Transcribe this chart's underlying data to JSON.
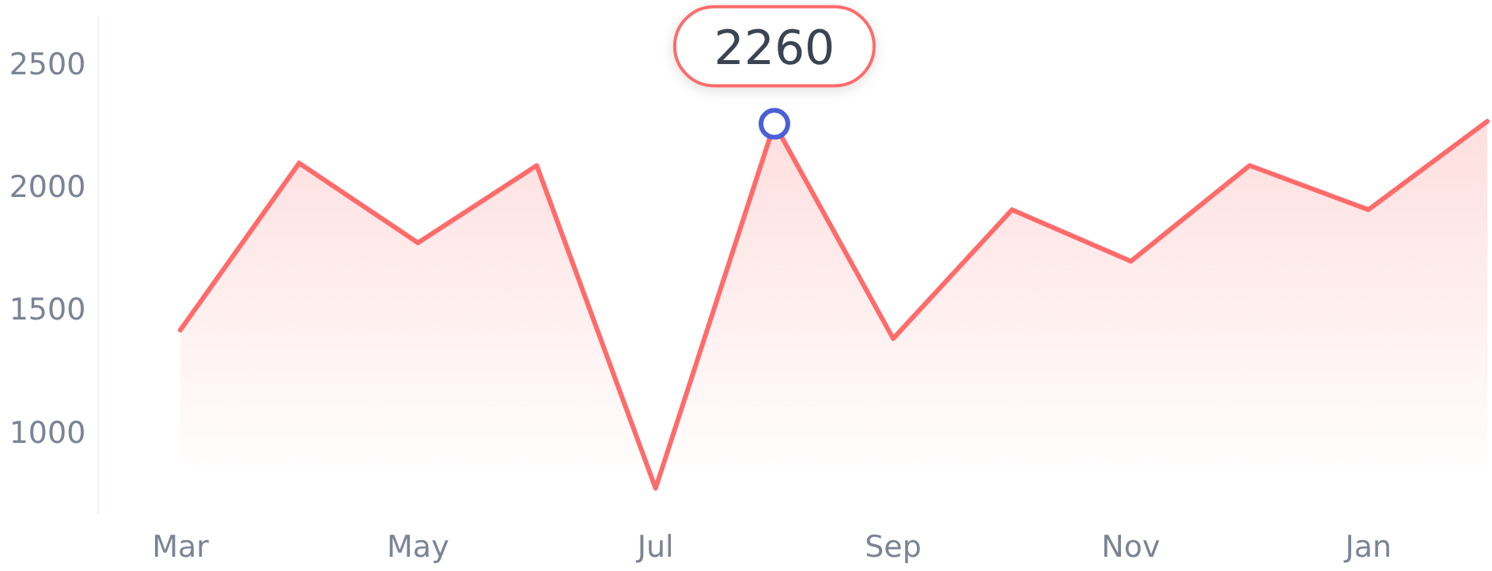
{
  "chart_data": {
    "type": "area",
    "categories": [
      "Mar",
      null,
      "May",
      null,
      "Jul",
      null,
      "Sep",
      null,
      "Nov",
      null,
      "Jan",
      null
    ],
    "series": [
      {
        "color": "#ff6b6b",
        "values": [
          1420,
          2100,
          1775,
          2090,
          775,
          2260,
          1385,
          1910,
          1700,
          2090,
          1910,
          2270
        ],
        "value_labels": [
          null,
          null,
          null,
          null,
          null,
          "2260",
          null,
          null,
          null,
          null,
          null,
          null
        ]
      }
    ],
    "ylim": [
      670,
      2700
    ],
    "yticks": [
      1000,
      1500,
      2000,
      2500
    ],
    "grid": false,
    "marker": "none"
  }
}
